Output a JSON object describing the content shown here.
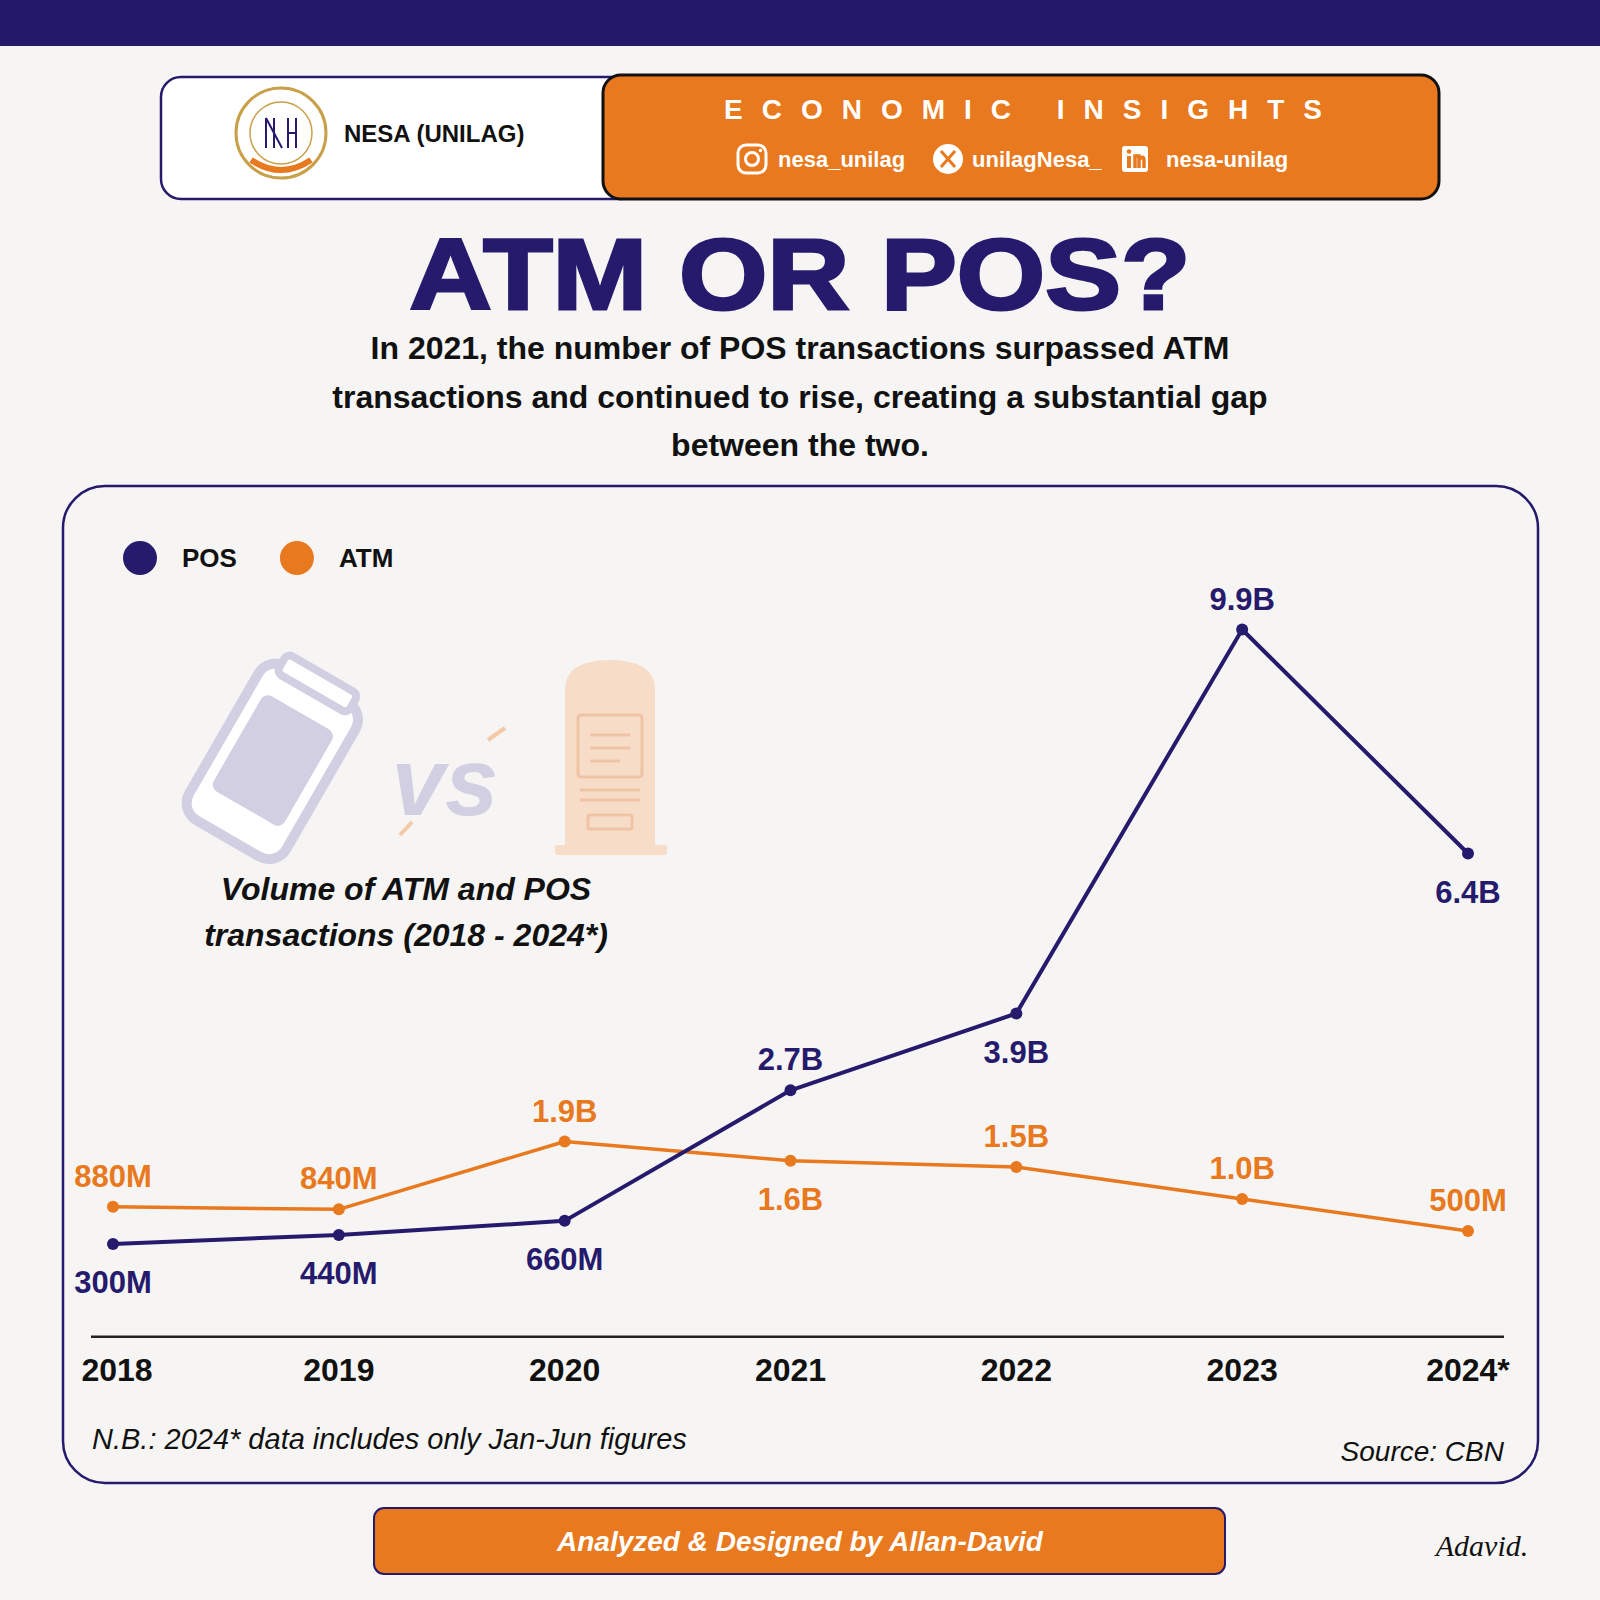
{
  "header": {
    "org": "NESA (UNILAG)",
    "banner": "ECONOMIC INSIGHTS",
    "socials": [
      "nesa_unilag",
      "unilagNesa_",
      "nesa-unilag"
    ]
  },
  "title": "ATM OR POS?",
  "subtitle": "In 2021, the number of POS transactions surpassed ATM transactions and continued to rise, creating a substantial gap between the two.",
  "illustration_text": "vs",
  "chart_data": {
    "type": "line",
    "title": "Volume of ATM and POS transactions (2018 - 2024*)",
    "categories": [
      "2018",
      "2019",
      "2020",
      "2021",
      "2022",
      "2023",
      "2024*"
    ],
    "series": [
      {
        "name": "POS",
        "color": "#261a6d",
        "values": [
          300000000,
          440000000,
          660000000,
          2700000000,
          3900000000,
          9900000000,
          6400000000
        ],
        "value_labels": [
          "300M",
          "440M",
          "660M",
          "2.7B",
          "3.9B",
          "9.9B",
          "6.4B"
        ]
      },
      {
        "name": "ATM",
        "color": "#e8791e",
        "values": [
          880000000,
          840000000,
          1900000000,
          1600000000,
          1500000000,
          1000000000,
          500000000
        ],
        "value_labels": [
          "880M",
          "840M",
          "1.9B",
          "1.6B",
          "1.5B",
          "1.0B",
          "500M"
        ]
      }
    ],
    "ylim": [
      -1150000000,
      10400000000
    ],
    "data_labels": true,
    "tick_labels": "x",
    "legend": "top-left",
    "marker": "circle",
    "grid": false
  },
  "footnote": {
    "note": "N.B.: 2024* data includes only Jan-Jun figures",
    "source": "Source: CBN"
  },
  "footer": {
    "credit": "Analyzed & Designed by Allan-David",
    "signature": "Adavid."
  }
}
